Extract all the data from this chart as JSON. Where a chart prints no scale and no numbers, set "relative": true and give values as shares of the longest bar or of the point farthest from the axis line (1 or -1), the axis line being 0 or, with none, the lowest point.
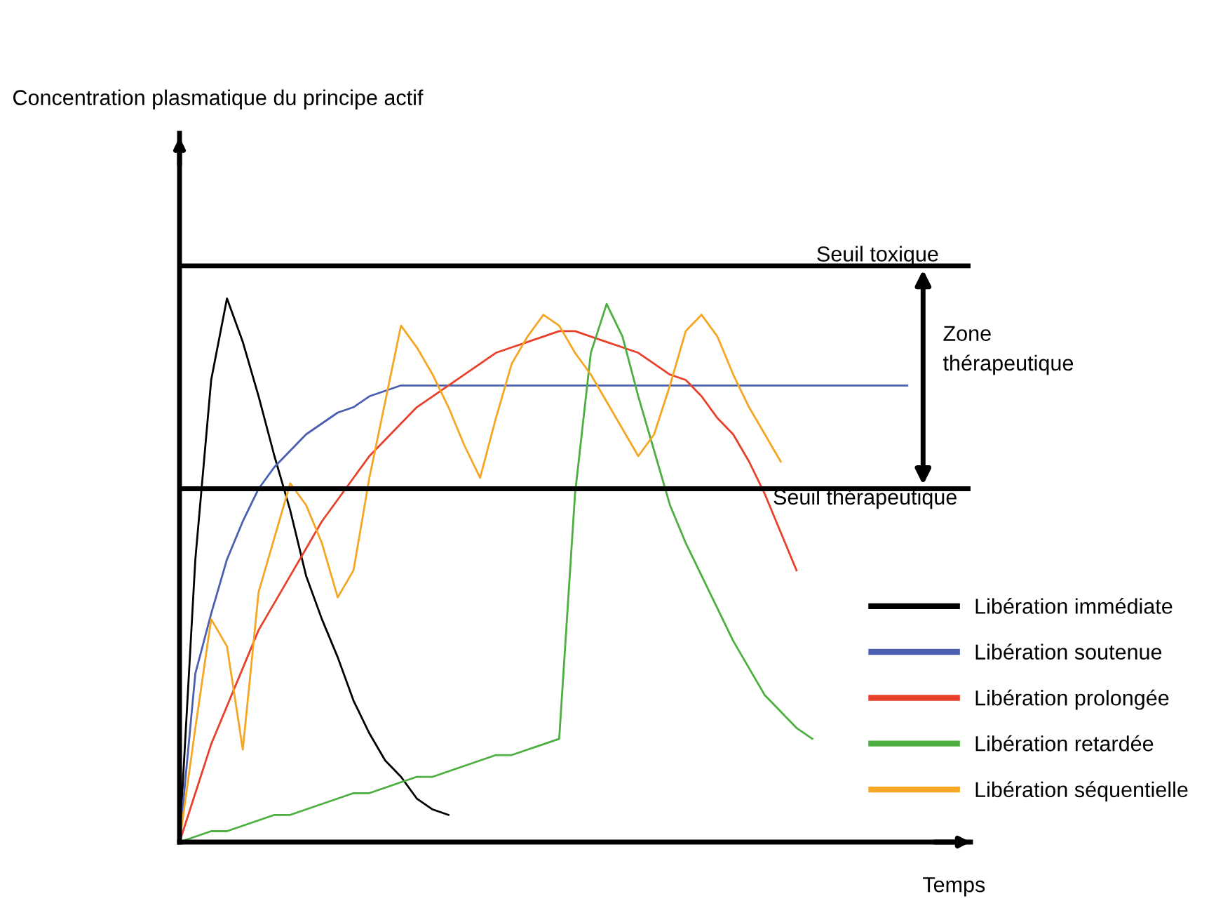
{
  "chart_data": {
    "type": "line",
    "relative": true,
    "xlabel": "Temps",
    "tick_labels": false,
    "legend": "bottom right",
    "marker": "none",
    "line_style": "solid",
    "categories": [
      null,
      null,
      null,
      null,
      null,
      null,
      null,
      null,
      null,
      null,
      null,
      null,
      null,
      null,
      null,
      null,
      null,
      null,
      null,
      null,
      null,
      null,
      null,
      null,
      null,
      null,
      null,
      null,
      null,
      null,
      null,
      null,
      null,
      null,
      null,
      null,
      null,
      null,
      null,
      null,
      null,
      null,
      null,
      null,
      null,
      null,
      null
    ],
    "series": [
      {
        "name": "Libération immédiate",
        "color": "#000000",
        "values": [
          0,
          0.52,
          0.85,
          1.0,
          0.92,
          0.82,
          0.71,
          0.61,
          0.49,
          0.41,
          0.34,
          0.26,
          0.2,
          0.15,
          0.12,
          0.08,
          0.06,
          0.05,
          null,
          null,
          null,
          null,
          null,
          null,
          null,
          null,
          null,
          null,
          null,
          null,
          null,
          null,
          null,
          null,
          null,
          null,
          null,
          null,
          null,
          null,
          null,
          null,
          null,
          null,
          null,
          null,
          null
        ]
      },
      {
        "name": "Libération soutenue",
        "color": "#4a5fb0",
        "values": [
          0,
          0.31,
          0.42,
          0.52,
          0.59,
          0.65,
          0.69,
          0.72,
          0.75,
          0.77,
          0.79,
          0.8,
          0.82,
          0.83,
          0.84,
          0.84,
          0.84,
          0.84,
          0.84,
          0.84,
          0.84,
          0.84,
          0.84,
          0.84,
          0.84,
          0.84,
          0.84,
          0.84,
          0.84,
          0.84,
          0.84,
          0.84,
          0.84,
          0.84,
          0.84,
          0.84,
          0.84,
          0.84,
          0.84,
          0.84,
          0.84,
          0.84,
          0.84,
          0.84,
          0.84,
          0.84,
          0.84
        ]
      },
      {
        "name": "Libération prolongée",
        "color": "#e8402a",
        "values": [
          0,
          0.09,
          0.18,
          0.25,
          0.32,
          0.39,
          0.44,
          0.49,
          0.54,
          0.59,
          0.63,
          0.67,
          0.71,
          0.74,
          0.77,
          0.8,
          0.82,
          0.84,
          0.86,
          0.88,
          0.9,
          0.91,
          0.92,
          0.93,
          0.94,
          0.94,
          0.93,
          0.92,
          0.91,
          0.9,
          0.88,
          0.86,
          0.85,
          0.82,
          0.78,
          0.75,
          0.7,
          0.64,
          0.57,
          0.5,
          null,
          null,
          null,
          null,
          null,
          null,
          null
        ]
      },
      {
        "name": "Libération retardée",
        "color": "#4caf3f",
        "values": [
          0,
          0.01,
          0.02,
          0.02,
          0.03,
          0.04,
          0.05,
          0.05,
          0.06,
          0.07,
          0.08,
          0.09,
          0.09,
          0.1,
          0.11,
          0.12,
          0.12,
          0.13,
          0.14,
          0.15,
          0.16,
          0.16,
          0.17,
          0.18,
          0.19,
          0.64,
          0.9,
          0.99,
          0.93,
          0.82,
          0.72,
          0.62,
          0.55,
          0.49,
          0.43,
          0.37,
          0.32,
          0.27,
          0.24,
          0.21,
          0.19,
          null,
          null,
          null,
          null,
          null,
          null
        ]
      },
      {
        "name": "Libération séquentielle",
        "color": "#f5a623",
        "values": [
          0,
          0.21,
          0.41,
          0.36,
          0.17,
          0.46,
          0.56,
          0.66,
          0.62,
          0.55,
          0.45,
          0.5,
          0.67,
          0.81,
          0.95,
          0.91,
          0.86,
          0.8,
          0.73,
          0.67,
          0.78,
          0.88,
          0.93,
          0.97,
          0.95,
          0.9,
          0.86,
          0.81,
          0.76,
          0.71,
          0.75,
          0.84,
          0.94,
          0.97,
          0.93,
          0.86,
          0.8,
          0.75,
          0.7,
          null,
          null,
          null,
          null,
          null,
          null,
          null,
          null
        ]
      }
    ],
    "ref_lines": [
      {
        "axis": "y",
        "value": 1.06,
        "label": "Seuil toxique",
        "color": "#000000",
        "line_style": "solid"
      },
      {
        "axis": "y",
        "value": 0.65,
        "label": "Seuil thérapeutique",
        "color": "#000000",
        "line_style": "solid"
      }
    ],
    "annotations": [
      "Concentration plasmatique du principe actif",
      "Zone thérapeutique"
    ]
  }
}
